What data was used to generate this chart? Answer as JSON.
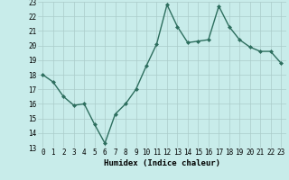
{
  "x": [
    0,
    1,
    2,
    3,
    4,
    5,
    6,
    7,
    8,
    9,
    10,
    11,
    12,
    13,
    14,
    15,
    16,
    17,
    18,
    19,
    20,
    21,
    22,
    23
  ],
  "y": [
    18,
    17.5,
    16.5,
    15.9,
    16.0,
    14.6,
    13.3,
    15.3,
    16.0,
    17.0,
    18.6,
    20.1,
    22.8,
    21.3,
    20.2,
    20.3,
    20.4,
    22.7,
    21.3,
    20.4,
    19.9,
    19.6,
    19.6,
    18.8
  ],
  "line_color": "#2d6e5e",
  "marker": "D",
  "marker_size": 2.0,
  "bg_color": "#c8ecea",
  "grid_color": "#aaccca",
  "xlabel": "Humidex (Indice chaleur)",
  "xlim": [
    -0.5,
    23.5
  ],
  "ylim": [
    13,
    23
  ],
  "yticks": [
    13,
    14,
    15,
    16,
    17,
    18,
    19,
    20,
    21,
    22,
    23
  ],
  "xticks": [
    0,
    1,
    2,
    3,
    4,
    5,
    6,
    7,
    8,
    9,
    10,
    11,
    12,
    13,
    14,
    15,
    16,
    17,
    18,
    19,
    20,
    21,
    22,
    23
  ],
  "xlabel_fontsize": 6.5,
  "tick_fontsize": 5.5,
  "linewidth": 1.0
}
